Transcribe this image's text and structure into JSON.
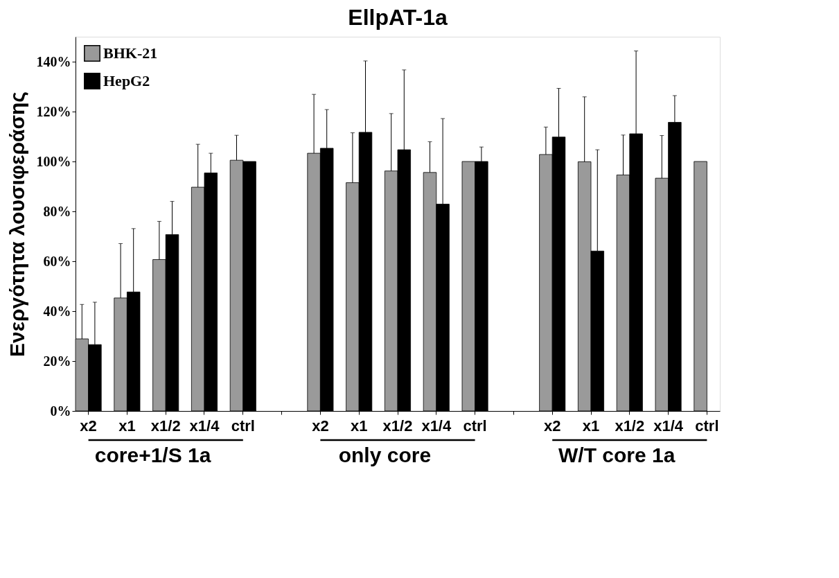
{
  "chart_data": {
    "type": "bar",
    "title": "EllpAT-1a",
    "ylabel": "Ενεργότητα λουσιφεράσης",
    "categories": [
      "x2",
      "x1",
      "x1/2",
      "x1/4",
      "ctrl",
      null,
      "x2",
      "x1",
      "x1/2",
      "x1/4",
      "ctrl",
      null,
      "x2",
      "x1",
      "x1/2",
      "x1/4",
      "ctrl"
    ],
    "series": [
      {
        "name": "BHK-21",
        "color": "#9a9a9a",
        "values": [
          28.9,
          45.3,
          60.7,
          89.7,
          100.5,
          null,
          103.3,
          91.5,
          96.2,
          95.6,
          100,
          null,
          102.8,
          99.9,
          94.6,
          93.3,
          100
        ],
        "errors": [
          [
            28.9,
            42.7
          ],
          [
            45.3,
            67.1
          ],
          [
            60.7,
            76.0
          ],
          [
            89.7,
            106.9
          ],
          [
            100.5,
            110.5
          ],
          null,
          [
            103.3,
            126.9
          ],
          [
            91.5,
            111.5
          ],
          [
            96.2,
            119.2
          ],
          [
            95.6,
            107.9
          ],
          null,
          null,
          [
            102.8,
            113.8
          ],
          [
            99.9,
            125.9
          ],
          [
            94.6,
            110.6
          ],
          [
            93.3,
            110.4
          ],
          null
        ]
      },
      {
        "name": "HepG2",
        "color": "#000000",
        "values": [
          26.6,
          47.7,
          70.7,
          95.4,
          100,
          null,
          105.3,
          111.7,
          104.7,
          82.9,
          100,
          null,
          109.8,
          64.1,
          111.1,
          115.7,
          null
        ],
        "errors": [
          [
            26.6,
            43.6
          ],
          [
            47.7,
            73.1
          ],
          [
            70.7,
            84.0
          ],
          [
            95.4,
            103.3
          ],
          null,
          null,
          [
            105.3,
            120.8
          ],
          [
            111.7,
            140.3
          ],
          [
            104.7,
            136.7
          ],
          [
            82.9,
            117.2
          ],
          [
            100,
            105.8
          ],
          null,
          [
            109.8,
            129.3
          ],
          [
            64.1,
            104.7
          ],
          [
            111.1,
            144.3
          ],
          [
            115.7,
            126.4
          ],
          null
        ]
      }
    ],
    "ylim": [
      0,
      150
    ],
    "yticks": [
      {
        "value": 0,
        "label": "0%"
      },
      {
        "value": 20,
        "label": "20%"
      },
      {
        "value": 40,
        "label": "40%"
      },
      {
        "value": 60,
        "label": "60%"
      },
      {
        "value": 80,
        "label": "80%"
      },
      {
        "value": 100,
        "label": "100%"
      },
      {
        "value": 120,
        "label": "120%"
      },
      {
        "value": 140,
        "label": "140%"
      }
    ],
    "annotations": [
      "core+1/S 1a",
      "only core",
      "W/T core 1a"
    ],
    "legend": "top left",
    "grid": false
  }
}
